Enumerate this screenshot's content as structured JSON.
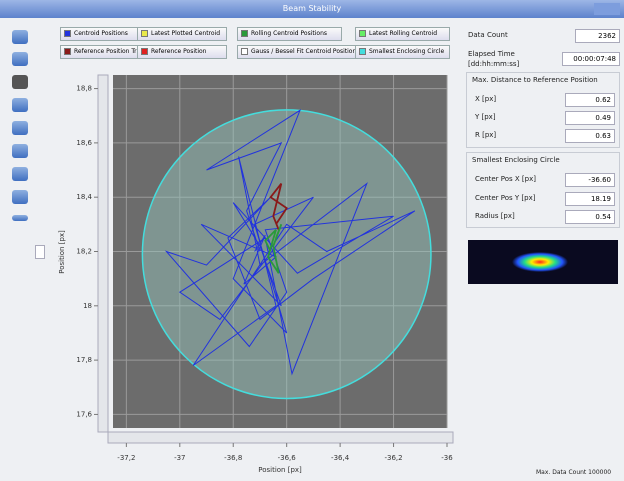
{
  "window": {
    "title": "Beam Stability"
  },
  "legend": [
    {
      "label": "Centroid Positions",
      "color": "#2233dd"
    },
    {
      "label": "Latest Plotted Centroid",
      "color": "#e8e84a"
    },
    {
      "label": "Rolling Centroid Positions",
      "color": "#2a9a3a"
    },
    {
      "label": "Latest Rolling Centroid",
      "color": "#66ee66"
    },
    {
      "label": "Reference Position Track",
      "color": "#8a1a1a"
    },
    {
      "label": "Reference Position",
      "color": "#e02020"
    },
    {
      "label": "Gauss / Bessel Fit Centroid Positions",
      "color": "#ffffff"
    },
    {
      "label": "Smallest Enclosing Circle",
      "color": "#44dddd"
    }
  ],
  "stats": {
    "data_count_label": "Data Count",
    "data_count": "2362",
    "elapsed_label": "Elapsed Time",
    "elapsed_unit": "[dd:hh:mm:ss]",
    "elapsed": "00:00:07:48"
  },
  "max_distance": {
    "title": "Max. Distance to Reference Position",
    "rows": [
      [
        "X [px]",
        "0.62"
      ],
      [
        "Y [px]",
        "0.49"
      ],
      [
        "R [px]",
        "0.63"
      ]
    ]
  },
  "circle": {
    "title": "Smallest Enclosing Circle",
    "center_x_label": "Center Pos X [px]",
    "center_x": -36.6,
    "center_y_label": "Center Pos Y [px]",
    "center_y": 18.19,
    "radius_label": "Radius [px]",
    "radius": 0.54,
    "center_x_text": "-36.60",
    "center_y_text": "18.19",
    "radius_text": "0.54"
  },
  "footer": {
    "max_count": "Max. Data Count 100000"
  },
  "chart_data": {
    "type": "scatter-line",
    "x_label": "Position [px]",
    "y_label": "Position [px]",
    "xlim": [
      -37.25,
      -36
    ],
    "ylim": [
      17.55,
      18.85
    ],
    "xticks": [
      {
        "value": -37.2,
        "label": "-37,2"
      },
      -37,
      {
        "value": -36.8,
        "label": "-36,8"
      },
      {
        "value": -36.6,
        "label": "-36,6"
      },
      {
        "value": -36.4,
        "label": "-36,4"
      },
      {
        "value": -36.2,
        "label": "-36,2"
      },
      -36
    ],
    "yticks": [
      {
        "value": 17.6,
        "label": "17,6"
      },
      {
        "value": 17.8,
        "label": "17,8"
      },
      18,
      {
        "value": 18.2,
        "label": "18,2"
      },
      {
        "value": 18.4,
        "label": "18,4"
      },
      {
        "value": 18.6,
        "label": "18,6"
      },
      {
        "value": 18.8,
        "label": "18,8"
      }
    ],
    "grid": true,
    "series": [
      {
        "color": "#2233dd",
        "x": [
          -36.7,
          -36.75,
          -36.62,
          -36.9,
          -36.55,
          -36.8,
          -36.6,
          -36.72,
          -36.5,
          -36.85,
          -37.0,
          -36.68,
          -36.58,
          -36.3,
          -36.7,
          -36.78,
          -36.64,
          -36.95,
          -36.6,
          -36.45,
          -36.12,
          -36.5,
          -36.7,
          -36.82,
          -36.66,
          -36.9,
          -37.05,
          -36.74,
          -36.6,
          -36.68,
          -36.2,
          -36.56,
          -36.8,
          -36.7,
          -36.62,
          -36.92,
          -36.64,
          -36.76,
          -36.68,
          -36.72
        ],
        "values": [
          18.2,
          18.35,
          18.6,
          18.5,
          18.72,
          18.1,
          17.9,
          18.3,
          18.4,
          17.95,
          18.05,
          18.25,
          17.75,
          18.45,
          18.15,
          18.55,
          18.0,
          17.78,
          18.3,
          18.2,
          18.35,
          18.1,
          17.95,
          18.25,
          18.4,
          18.15,
          18.2,
          17.85,
          18.05,
          18.28,
          18.33,
          18.12,
          18.38,
          18.22,
          18.0,
          18.3,
          18.18,
          18.08,
          18.26,
          18.2
        ]
      },
      {
        "color": "#8a1a1a",
        "x": [
          -36.64,
          -36.6,
          -36.66,
          -36.62,
          -36.65,
          -36.63
        ],
        "values": [
          18.3,
          18.36,
          18.4,
          18.45,
          18.33,
          18.28
        ]
      },
      {
        "color": "#2a9a3a",
        "x": [
          -36.66,
          -36.68,
          -36.64,
          -36.67,
          -36.63,
          -36.65,
          -36.62,
          -36.64
        ],
        "values": [
          18.2,
          18.24,
          18.28,
          18.18,
          18.12,
          18.22,
          18.3,
          18.25
        ]
      }
    ]
  }
}
